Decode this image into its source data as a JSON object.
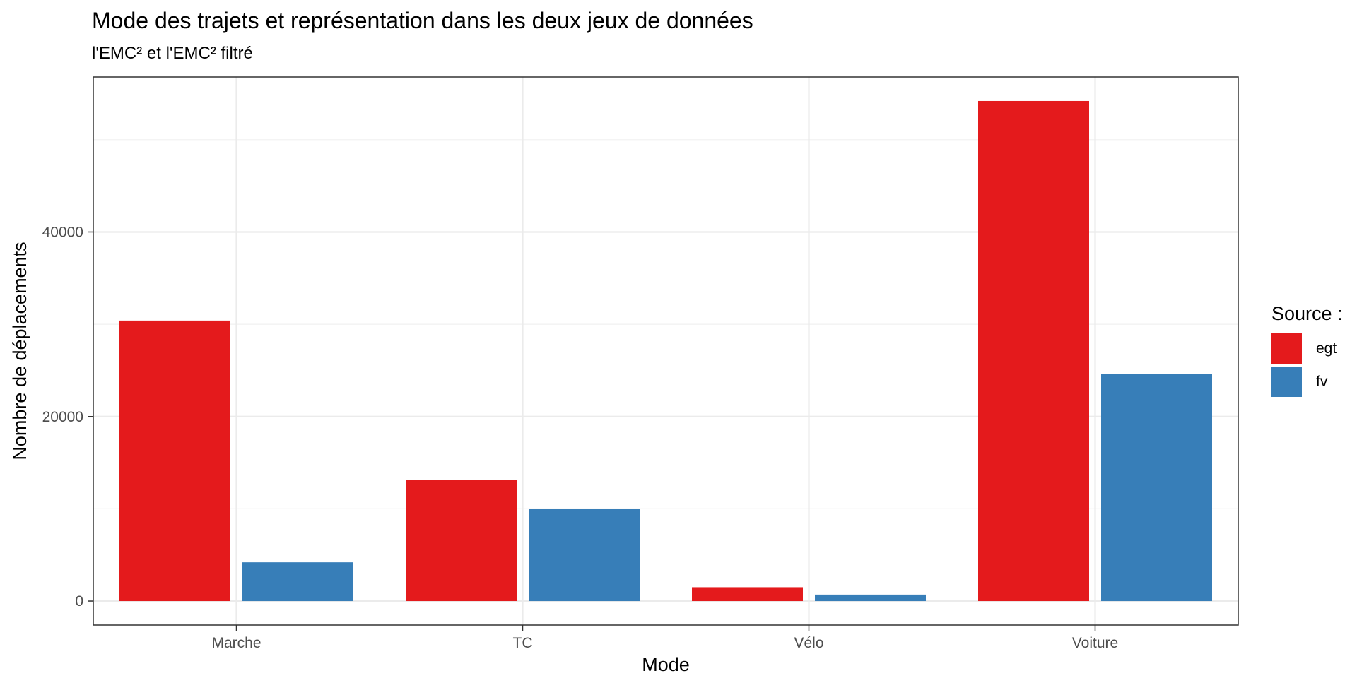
{
  "chart_data": {
    "type": "bar",
    "title": "Mode des trajets et représentation dans les deux jeux de données",
    "subtitle": "l'EMC² et l'EMC² filtré",
    "xlabel": "Mode",
    "ylabel": "Nombre de déplacements",
    "categories": [
      "Marche",
      "TC",
      "Vélo",
      "Voiture"
    ],
    "series": [
      {
        "name": "egt",
        "color": "#e41a1c",
        "values": [
          30400,
          13100,
          1500,
          54200
        ]
      },
      {
        "name": "fv",
        "color": "#377eb8",
        "values": [
          4200,
          10000,
          700,
          24600
        ]
      }
    ],
    "ylim": [
      -2600,
      56800
    ],
    "yticks": [
      0,
      20000,
      40000
    ],
    "yticks_minor": [
      10000,
      30000,
      50000
    ],
    "grid": true,
    "legend": {
      "title": "Source :",
      "position": "right"
    }
  }
}
